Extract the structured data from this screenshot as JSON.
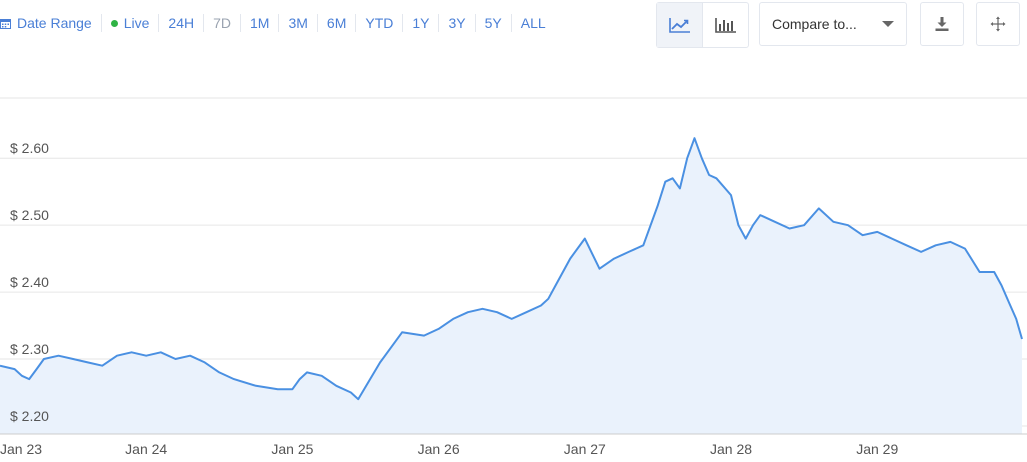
{
  "toolbar": {
    "date_range_label": "Date Range",
    "live_label": "Live",
    "ranges": [
      "24H",
      "7D",
      "1M",
      "3M",
      "6M",
      "YTD",
      "1Y",
      "3Y",
      "5Y",
      "ALL"
    ],
    "disabled_range": "7D",
    "compare_placeholder": "Compare to...",
    "chart_type_active": "line-chart-icon",
    "live_color": "#2fb344",
    "accent_color": "#4a7fd6"
  },
  "chart_data": {
    "type": "area",
    "y_tick_labels": [
      "$ 2.20",
      "$ 2.30",
      "$ 2.40",
      "$ 2.50",
      "$ 2.60"
    ],
    "y_ticks": [
      2.2,
      2.3,
      2.4,
      2.5,
      2.6
    ],
    "x_tick_labels": [
      "Jan 23",
      "Jan 24",
      "Jan 25",
      "Jan 26",
      "Jan 27",
      "Jan 28",
      "Jan 29"
    ],
    "x_ticks": [
      0,
      1,
      2,
      3,
      4,
      5,
      6
    ],
    "ylim": [
      2.188,
      2.69
    ],
    "xlim": [
      0,
      6.99
    ],
    "grid": true,
    "line_color": "#4a90e2",
    "fill_color": "#eaf2fc",
    "x": [
      0.0,
      0.1,
      0.15,
      0.2,
      0.25,
      0.3,
      0.4,
      0.5,
      0.6,
      0.7,
      0.8,
      0.9,
      1.0,
      1.1,
      1.2,
      1.3,
      1.4,
      1.5,
      1.6,
      1.75,
      1.9,
      2.0,
      2.05,
      2.1,
      2.2,
      2.3,
      2.4,
      2.45,
      2.6,
      2.75,
      2.9,
      3.0,
      3.1,
      3.2,
      3.3,
      3.4,
      3.5,
      3.6,
      3.7,
      3.75,
      3.8,
      3.9,
      4.0,
      4.1,
      4.2,
      4.3,
      4.4,
      4.5,
      4.55,
      4.6,
      4.65,
      4.7,
      4.75,
      4.8,
      4.85,
      4.9,
      5.0,
      5.05,
      5.1,
      5.15,
      5.2,
      5.3,
      5.4,
      5.5,
      5.6,
      5.7,
      5.8,
      5.9,
      6.0,
      6.1,
      6.2,
      6.3,
      6.4,
      6.5,
      6.6,
      6.7,
      6.8,
      6.85,
      6.9,
      6.95,
      6.99
    ],
    "y": [
      2.29,
      2.285,
      2.275,
      2.27,
      2.285,
      2.3,
      2.305,
      2.3,
      2.295,
      2.29,
      2.305,
      2.31,
      2.305,
      2.31,
      2.3,
      2.305,
      2.295,
      2.28,
      2.27,
      2.26,
      2.255,
      2.255,
      2.27,
      2.28,
      2.275,
      2.26,
      2.25,
      2.24,
      2.295,
      2.34,
      2.335,
      2.345,
      2.36,
      2.37,
      2.375,
      2.37,
      2.36,
      2.37,
      2.38,
      2.39,
      2.41,
      2.45,
      2.48,
      2.435,
      2.45,
      2.46,
      2.47,
      2.53,
      2.565,
      2.57,
      2.555,
      2.6,
      2.63,
      2.6,
      2.575,
      2.57,
      2.545,
      2.5,
      2.48,
      2.5,
      2.515,
      2.505,
      2.495,
      2.5,
      2.525,
      2.505,
      2.5,
      2.485,
      2.49,
      2.48,
      2.47,
      2.46,
      2.47,
      2.475,
      2.465,
      2.43,
      2.43,
      2.41,
      2.385,
      2.36,
      2.33
    ]
  }
}
